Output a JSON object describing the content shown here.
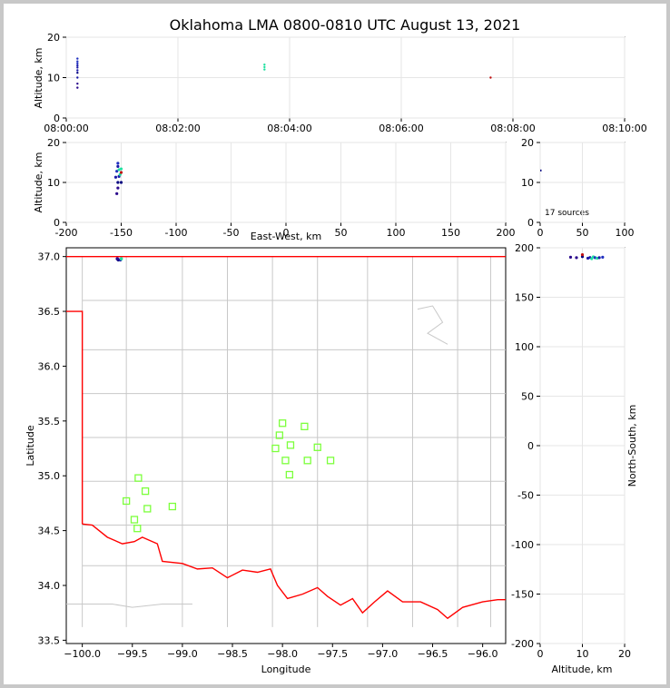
{
  "title": "Oklahoma LMA 0800-0810 UTC August 13, 2021",
  "colors": {
    "state_border": "#ff0000",
    "county_lines": "#c8c8c8",
    "station_marker": "#7cff3c",
    "grid": "#e6e6e6"
  },
  "chart_data": [
    {
      "id": "time_altitude",
      "type": "scatter",
      "ylabel": "Altitude, km",
      "xticks": [
        "08:00:00",
        "08:02:00",
        "08:04:00",
        "08:06:00",
        "08:08:00",
        "08:10:00"
      ],
      "yticks": [
        0,
        10,
        20
      ],
      "xlim_seconds": [
        0,
        600
      ],
      "ylim": [
        0,
        20
      ],
      "grid": true,
      "points": [
        {
          "t": 12,
          "alt": 7.5,
          "c": "#2b0a8c"
        },
        {
          "t": 12,
          "alt": 8.5,
          "c": "#2b0a8c"
        },
        {
          "t": 12,
          "alt": 10.0,
          "c": "#1a1aa8"
        },
        {
          "t": 12,
          "alt": 11.2,
          "c": "#000080"
        },
        {
          "t": 12,
          "alt": 11.8,
          "c": "#1a1aa8"
        },
        {
          "t": 12,
          "alt": 12.5,
          "c": "#1a1aa8"
        },
        {
          "t": 12,
          "alt": 13.0,
          "c": "#1a1aa8"
        },
        {
          "t": 12,
          "alt": 13.5,
          "c": "#2030c0"
        },
        {
          "t": 12,
          "alt": 14.0,
          "c": "#2030c0"
        },
        {
          "t": 12,
          "alt": 14.7,
          "c": "#2030c0"
        },
        {
          "t": 213,
          "alt": 12.0,
          "c": "#20e0a0"
        },
        {
          "t": 213,
          "alt": 12.6,
          "c": "#20e0a0"
        },
        {
          "t": 213,
          "alt": 13.2,
          "c": "#20e0a0"
        },
        {
          "t": 456,
          "alt": 10.0,
          "c": "#c01010"
        }
      ]
    },
    {
      "id": "east_west_altitude",
      "type": "scatter",
      "xlabel": "East-West, km",
      "ylabel": "Altitude, km",
      "xticks": [
        -200,
        -150,
        -100,
        -50,
        0,
        50,
        100,
        150,
        200
      ],
      "yticks": [
        0,
        10,
        20
      ],
      "xlim": [
        -200,
        200
      ],
      "ylim": [
        0,
        20
      ],
      "grid": true,
      "points": [
        {
          "x": -154,
          "alt": 7.2,
          "c": "#2b0a8c"
        },
        {
          "x": -153,
          "alt": 8.6,
          "c": "#2b0a8c"
        },
        {
          "x": -153,
          "alt": 10.0,
          "c": "#000080"
        },
        {
          "x": -150,
          "alt": 10.0,
          "c": "#000080"
        },
        {
          "x": -155,
          "alt": 11.3,
          "c": "#1a1aa8"
        },
        {
          "x": -152,
          "alt": 11.5,
          "c": "#1a1aa8"
        },
        {
          "x": -151,
          "alt": 12.0,
          "c": "#20e0a0"
        },
        {
          "x": -154,
          "alt": 12.8,
          "c": "#2030c0"
        },
        {
          "x": -152,
          "alt": 13.2,
          "c": "#20e0a0"
        },
        {
          "x": -150,
          "alt": 13.4,
          "c": "#20e0a0"
        },
        {
          "x": -153,
          "alt": 14.0,
          "c": "#1a1aa8"
        },
        {
          "x": -153,
          "alt": 14.8,
          "c": "#2030c0"
        },
        {
          "x": -150,
          "alt": 12.5,
          "c": "#c01010"
        }
      ]
    },
    {
      "id": "histogram",
      "type": "bar",
      "annotation": "17 sources",
      "xticks": [
        0,
        50,
        100
      ],
      "yticks": [
        0,
        10,
        20
      ],
      "xlim": [
        0,
        100
      ],
      "ylim": [
        0,
        20
      ],
      "grid": true,
      "bars": [
        {
          "alt": 13.0,
          "count": 1.2,
          "c": "#000080"
        }
      ]
    },
    {
      "id": "plan_view",
      "type": "scatter",
      "xlabel": "Longitude",
      "ylabel": "Latitude",
      "xticks": [
        -100.0,
        -99.5,
        -99.0,
        -98.5,
        -98.0,
        -97.5,
        -97.0,
        -96.5,
        -96.0
      ],
      "xtick_labels": [
        "−100.0",
        "−99.5",
        "−99.0",
        "−98.5",
        "−98.0",
        "−97.5",
        "−97.0",
        "−96.5",
        "−96.0"
      ],
      "yticks": [
        33.5,
        34.0,
        34.5,
        35.0,
        35.5,
        36.0,
        36.5,
        37.0
      ],
      "ytick_labels": [
        "33.5",
        "34.0",
        "34.5",
        "35.0",
        "35.5",
        "36.0",
        "36.5",
        "37.0"
      ],
      "xlim": [
        -100.16,
        -95.77
      ],
      "ylim": [
        33.47,
        37.08
      ],
      "grid": false,
      "stations": [
        {
          "lon": -99.44,
          "lat": 34.98
        },
        {
          "lon": -99.37,
          "lat": 34.86
        },
        {
          "lon": -99.56,
          "lat": 34.77
        },
        {
          "lon": -99.35,
          "lat": 34.7
        },
        {
          "lon": -99.48,
          "lat": 34.6
        },
        {
          "lon": -99.45,
          "lat": 34.52
        },
        {
          "lon": -99.1,
          "lat": 34.72
        },
        {
          "lon": -98.0,
          "lat": 35.48
        },
        {
          "lon": -97.78,
          "lat": 35.45
        },
        {
          "lon": -98.03,
          "lat": 35.37
        },
        {
          "lon": -98.07,
          "lat": 35.25
        },
        {
          "lon": -97.92,
          "lat": 35.28
        },
        {
          "lon": -97.65,
          "lat": 35.26
        },
        {
          "lon": -97.97,
          "lat": 35.14
        },
        {
          "lon": -97.75,
          "lat": 35.14
        },
        {
          "lon": -97.52,
          "lat": 35.14
        },
        {
          "lon": -97.93,
          "lat": 35.01
        }
      ],
      "points": [
        {
          "lon": -99.64,
          "lat": 36.97,
          "c": "#000080"
        },
        {
          "lon": -99.62,
          "lat": 36.97,
          "c": "#1a1aa8"
        },
        {
          "lon": -99.61,
          "lat": 36.98,
          "c": "#20e0a0"
        },
        {
          "lon": -99.65,
          "lat": 36.98,
          "c": "#2b0a8c"
        }
      ]
    },
    {
      "id": "altitude_north_south",
      "type": "scatter",
      "xlabel": "Altitude, km",
      "ylabel": "North-South, km",
      "xticks": [
        0,
        10,
        20
      ],
      "yticks": [
        -200,
        -150,
        -100,
        -50,
        0,
        50,
        100,
        150,
        200
      ],
      "xlim": [
        0,
        20
      ],
      "ylim": [
        -200,
        200
      ],
      "grid": true,
      "points": [
        {
          "alt": 7.2,
          "y": 190.5,
          "c": "#2b0a8c"
        },
        {
          "alt": 8.6,
          "y": 190.0,
          "c": "#2b0a8c"
        },
        {
          "alt": 10.0,
          "y": 191.0,
          "c": "#000080"
        },
        {
          "alt": 10.0,
          "y": 193.0,
          "c": "#c01010"
        },
        {
          "alt": 11.3,
          "y": 189.5,
          "c": "#1a1aa8"
        },
        {
          "alt": 11.8,
          "y": 190.2,
          "c": "#1a1aa8"
        },
        {
          "alt": 12.2,
          "y": 189.0,
          "c": "#20e0a0"
        },
        {
          "alt": 12.6,
          "y": 190.8,
          "c": "#20e0a0"
        },
        {
          "alt": 13.0,
          "y": 190.0,
          "c": "#2030c0"
        },
        {
          "alt": 13.5,
          "y": 189.5,
          "c": "#20e0a0"
        },
        {
          "alt": 14.0,
          "y": 190.0,
          "c": "#1a1aa8"
        },
        {
          "alt": 14.8,
          "y": 190.5,
          "c": "#2030c0"
        }
      ]
    }
  ]
}
